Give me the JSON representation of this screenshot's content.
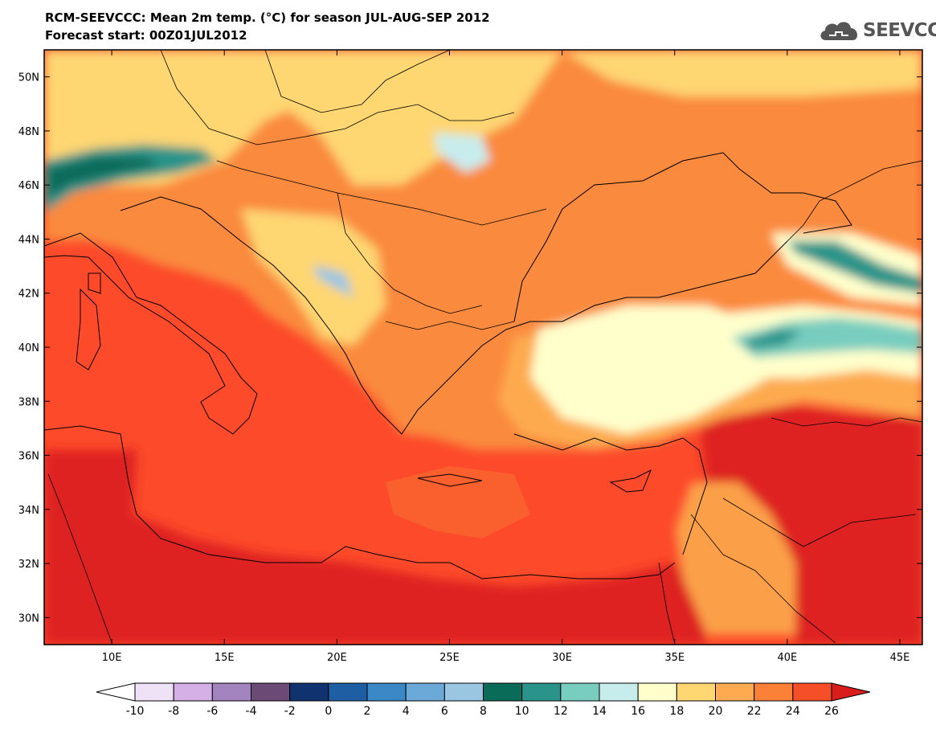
{
  "title": {
    "line1": "RCM-SEEVCCC: Mean 2m temp. (°C) for season JUL-AUG-SEP 2012",
    "line2": "Forecast start: 00Z01JUL2012"
  },
  "logo": {
    "text": "SEEVCCC",
    "icon": "cloud-icon",
    "color": "#555555"
  },
  "map": {
    "lon_range": [
      7,
      46
    ],
    "lat_range": [
      29,
      51
    ],
    "lon_ticks": [
      "10E",
      "15E",
      "20E",
      "25E",
      "30E",
      "35E",
      "40E",
      "45E"
    ],
    "lat_ticks": [
      "30N",
      "32N",
      "34N",
      "36N",
      "38N",
      "40N",
      "42N",
      "44N",
      "46N",
      "48N",
      "50N"
    ],
    "sea_color": "#fc4a2a"
  },
  "colorbar": {
    "labels": [
      "-10",
      "-8",
      "-6",
      "-4",
      "-2",
      "0",
      "2",
      "4",
      "6",
      "8",
      "10",
      "12",
      "14",
      "16",
      "18",
      "20",
      "22",
      "24",
      "26"
    ],
    "colors": [
      "#ffffff",
      "#f0e2f6",
      "#d4b0e6",
      "#a484bf",
      "#6b4a75",
      "#10326e",
      "#1e5fa3",
      "#3a88c6",
      "#6aa9d8",
      "#9ac6e2",
      "#0a6b59",
      "#2a948a",
      "#79cdbf",
      "#c8ecec",
      "#ffffcc",
      "#fed672",
      "#fdaa50",
      "#fb8038",
      "#f54f29",
      "#d91d1d"
    ]
  }
}
